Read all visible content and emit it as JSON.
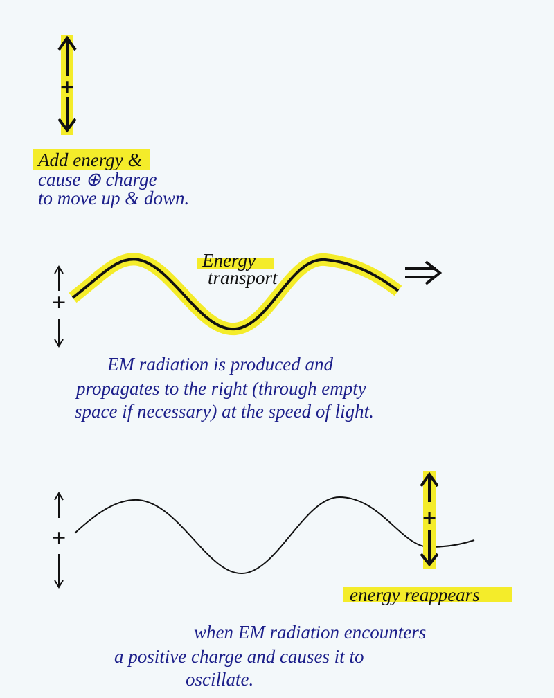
{
  "section1": {
    "charge": "+",
    "lines": [
      "Add energy &",
      "cause ⊕ charge",
      "to move up & down."
    ]
  },
  "section2": {
    "charge": "+",
    "label": [
      "Energy",
      "transport"
    ],
    "lines": [
      "EM radiation is produced and",
      "propagates to the right (through empty",
      "space if necessary) at the speed of light."
    ]
  },
  "section3": {
    "charge_left": "+",
    "charge_right": "+",
    "label": "energy reappears",
    "lines": [
      "when EM radiation encounters",
      "a positive charge and causes it to",
      "oscillate."
    ]
  }
}
